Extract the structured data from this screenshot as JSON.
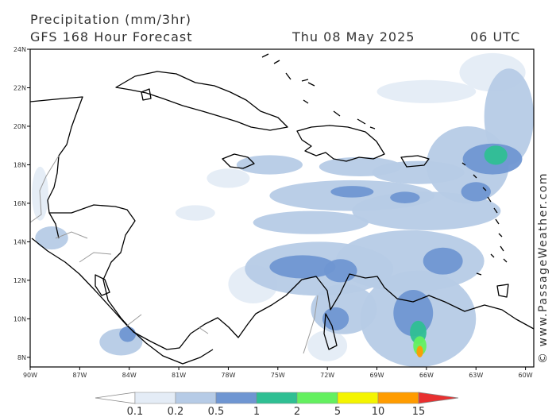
{
  "header": {
    "title": "Precipitation (mm/3hr)",
    "subtitle": "GFS 168 Hour Forecast",
    "date": "Thu 08 May 2025",
    "time": "06 UTC"
  },
  "watermark": "© www.PassageWeather.com",
  "map": {
    "lon_range": [
      -90,
      -59.5
    ],
    "lat_range": [
      7.5,
      24
    ],
    "lat_labels": [
      "24N",
      "22N",
      "20N",
      "18N",
      "16N",
      "14N",
      "12N",
      "10N",
      "8N"
    ],
    "lat_values": [
      24,
      22,
      20,
      18,
      16,
      14,
      12,
      10,
      8
    ],
    "lon_labels": [
      "90W",
      "87W",
      "84W",
      "81W",
      "78W",
      "75W",
      "72W",
      "69W",
      "66W",
      "63W",
      "60W"
    ],
    "lon_values": [
      -90,
      -87,
      -84,
      -81,
      -78,
      -75,
      -72,
      -69,
      -66,
      -63,
      -60
    ],
    "colors": {
      "land_outline": "#000000",
      "border": "#9a9a9a"
    }
  },
  "precip_areas": [
    {
      "lon": -75.5,
      "lat": 18.0,
      "rx": 2.0,
      "ry": 0.5,
      "level": 1
    },
    {
      "lon": -70.0,
      "lat": 17.9,
      "rx": 2.5,
      "ry": 0.5,
      "level": 1
    },
    {
      "lon": -66.5,
      "lat": 17.6,
      "rx": 2.8,
      "ry": 0.6,
      "level": 1
    },
    {
      "lon": -70.5,
      "lat": 16.4,
      "rx": 5.0,
      "ry": 0.8,
      "level": 1
    },
    {
      "lon": -73.0,
      "lat": 15.0,
      "rx": 3.5,
      "ry": 0.6,
      "level": 1
    },
    {
      "lon": -66.0,
      "lat": 15.6,
      "rx": 4.5,
      "ry": 1.0,
      "level": 1
    },
    {
      "lon": -72.5,
      "lat": 12.6,
      "rx": 4.5,
      "ry": 1.4,
      "level": 1
    },
    {
      "lon": -67.0,
      "lat": 13.0,
      "rx": 4.5,
      "ry": 1.6,
      "level": 1
    },
    {
      "lon": -63.5,
      "lat": 18.0,
      "rx": 2.5,
      "ry": 2.0,
      "level": 1
    },
    {
      "lon": -61.0,
      "lat": 20.5,
      "rx": 1.5,
      "ry": 2.5,
      "level": 1
    },
    {
      "lon": -66.5,
      "lat": 10.0,
      "rx": 3.5,
      "ry": 2.5,
      "level": 1
    },
    {
      "lon": -71.0,
      "lat": 10.5,
      "rx": 2.0,
      "ry": 1.3,
      "level": 1
    },
    {
      "lon": -84.5,
      "lat": 8.8,
      "rx": 1.3,
      "ry": 0.7,
      "level": 1
    },
    {
      "lon": -88.7,
      "lat": 14.2,
      "rx": 1.0,
      "ry": 0.6,
      "level": 1
    },
    {
      "lon": -89.4,
      "lat": 16.5,
      "rx": 0.5,
      "ry": 1.4,
      "level": 0
    },
    {
      "lon": -80.0,
      "lat": 15.5,
      "rx": 1.2,
      "ry": 0.4,
      "level": 0
    },
    {
      "lon": -78.0,
      "lat": 17.3,
      "rx": 1.3,
      "ry": 0.5,
      "level": 0
    },
    {
      "lon": -66.0,
      "lat": 21.8,
      "rx": 3.0,
      "ry": 0.6,
      "level": 0
    },
    {
      "lon": -62.0,
      "lat": 22.8,
      "rx": 2.0,
      "ry": 1.0,
      "level": 0
    },
    {
      "lon": -76.5,
      "lat": 11.8,
      "rx": 1.5,
      "ry": 1.0,
      "level": 0
    },
    {
      "lon": -72.0,
      "lat": 8.6,
      "rx": 1.2,
      "ry": 0.8,
      "level": 0
    },
    {
      "lon": -73.5,
      "lat": 12.7,
      "rx": 2.0,
      "ry": 0.6,
      "level": 2
    },
    {
      "lon": -71.2,
      "lat": 12.5,
      "rx": 1.0,
      "ry": 0.6,
      "level": 2
    },
    {
      "lon": -70.5,
      "lat": 16.6,
      "rx": 1.3,
      "ry": 0.3,
      "level": 2
    },
    {
      "lon": -67.3,
      "lat": 16.3,
      "rx": 0.9,
      "ry": 0.3,
      "level": 2
    },
    {
      "lon": -65.0,
      "lat": 13.0,
      "rx": 1.2,
      "ry": 0.7,
      "level": 2
    },
    {
      "lon": -66.8,
      "lat": 10.3,
      "rx": 1.2,
      "ry": 1.2,
      "level": 2
    },
    {
      "lon": -62.0,
      "lat": 18.3,
      "rx": 1.8,
      "ry": 0.8,
      "level": 2
    },
    {
      "lon": -63.0,
      "lat": 16.6,
      "rx": 0.9,
      "ry": 0.5,
      "level": 2
    },
    {
      "lon": -71.5,
      "lat": 10.0,
      "rx": 0.8,
      "ry": 0.6,
      "level": 2
    },
    {
      "lon": -84.1,
      "lat": 9.2,
      "rx": 0.5,
      "ry": 0.4,
      "level": 2
    },
    {
      "lon": -66.5,
      "lat": 9.3,
      "rx": 0.5,
      "ry": 0.6,
      "level": 3
    },
    {
      "lon": -61.8,
      "lat": 18.5,
      "rx": 0.7,
      "ry": 0.5,
      "level": 3
    },
    {
      "lon": -66.4,
      "lat": 8.6,
      "rx": 0.4,
      "ry": 0.5,
      "level": 4
    },
    {
      "lon": -66.4,
      "lat": 8.3,
      "rx": 0.2,
      "ry": 0.3,
      "level": 6
    }
  ],
  "colorbar": {
    "levels": [
      "0.1",
      "0.2",
      "0.5",
      "1",
      "2",
      "5",
      "10",
      "15"
    ],
    "colors": [
      "#e4ecf6",
      "#b6cbe6",
      "#6f96d2",
      "#2fbf93",
      "#64f060",
      "#f4f400",
      "#ff9c00",
      "#e83030"
    ],
    "arrow_left_color": "#ffffff",
    "arrow_right_color": "#e83030"
  }
}
